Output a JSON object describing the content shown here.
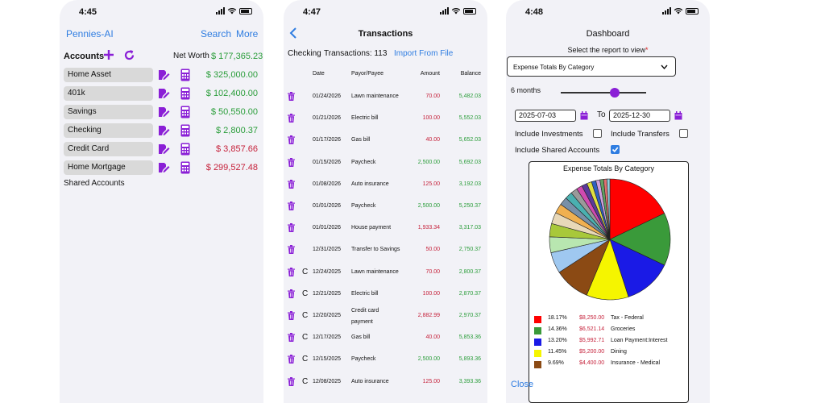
{
  "status_times": [
    "4:45",
    "4:47",
    "4:48"
  ],
  "screen1": {
    "app_title": "Pennies-AI",
    "search_label": "Search",
    "more_label": "More",
    "accounts_label": "Accounts",
    "net_worth_label": "Net Worth",
    "net_worth_value": "$ 177,365.23",
    "accounts": [
      {
        "name": "Home Asset",
        "amount": "$ 325,000.00",
        "color": "green"
      },
      {
        "name": "401k",
        "amount": "$ 102,400.00",
        "color": "green"
      },
      {
        "name": "Savings",
        "amount": "$ 50,550.00",
        "color": "green"
      },
      {
        "name": "Checking",
        "amount": "$ 2,800.37",
        "color": "green"
      },
      {
        "name": "Credit Card",
        "amount": "$ 3,857.66",
        "color": "red"
      },
      {
        "name": "Home Mortgage",
        "amount": "$ 299,527.48",
        "color": "red"
      }
    ],
    "shared_accounts_label": "Shared Accounts"
  },
  "screen2": {
    "title": "Transactions",
    "account_label": "Checking",
    "count_label": "Transactions: 113",
    "import_label": "Import From File",
    "columns": [
      "Date",
      "Payor/Payee",
      "Amount",
      "Balance"
    ],
    "rows": [
      {
        "c": "",
        "date": "01/24/2026",
        "payee": "Lawn maintenance",
        "payee2": "",
        "amount": "70.00",
        "amount_color": "red",
        "balance": "5,482.03"
      },
      {
        "c": "",
        "date": "01/21/2026",
        "payee": "Electric bill",
        "payee2": "",
        "amount": "100.00",
        "amount_color": "red",
        "balance": "5,552.03"
      },
      {
        "c": "",
        "date": "01/17/2026",
        "payee": "Gas bill",
        "payee2": "",
        "amount": "40.00",
        "amount_color": "red",
        "balance": "5,652.03"
      },
      {
        "c": "",
        "date": "01/15/2026",
        "payee": "Paycheck",
        "payee2": "",
        "amount": "2,500.00",
        "amount_color": "green",
        "balance": "5,692.03"
      },
      {
        "c": "",
        "date": "01/08/2026",
        "payee": "Auto insurance",
        "payee2": "",
        "amount": "125.00",
        "amount_color": "red",
        "balance": "3,192.03"
      },
      {
        "c": "",
        "date": "01/01/2026",
        "payee": "Paycheck",
        "payee2": "",
        "amount": "2,500.00",
        "amount_color": "green",
        "balance": "5,250.37"
      },
      {
        "c": "",
        "date": "01/01/2026",
        "payee": "House payment",
        "payee2": "",
        "amount": "1,933.34",
        "amount_color": "red",
        "balance": "3,317.03"
      },
      {
        "c": "",
        "date": "12/31/2025",
        "payee": "Transfer to Savings",
        "payee2": "",
        "amount": "50.00",
        "amount_color": "red",
        "balance": "2,750.37"
      },
      {
        "c": "C",
        "date": "12/24/2025",
        "payee": "Lawn maintenance",
        "payee2": "",
        "amount": "70.00",
        "amount_color": "red",
        "balance": "2,800.37"
      },
      {
        "c": "C",
        "date": "12/21/2025",
        "payee": "Electric bill",
        "payee2": "",
        "amount": "100.00",
        "amount_color": "red",
        "balance": "2,870.37"
      },
      {
        "c": "C",
        "date": "12/20/2025",
        "payee": "Credit card",
        "payee2": "payment",
        "amount": "2,882.99",
        "amount_color": "red",
        "balance": "2,970.37"
      },
      {
        "c": "C",
        "date": "12/17/2025",
        "payee": "Gas bill",
        "payee2": "",
        "amount": "40.00",
        "amount_color": "red",
        "balance": "5,853.36"
      },
      {
        "c": "C",
        "date": "12/15/2025",
        "payee": "Paycheck",
        "payee2": "",
        "amount": "2,500.00",
        "amount_color": "green",
        "balance": "5,893.36"
      },
      {
        "c": "C",
        "date": "12/08/2025",
        "payee": "Auto insurance",
        "payee2": "",
        "amount": "125.00",
        "amount_color": "red",
        "balance": "3,393.36"
      }
    ]
  },
  "screen3": {
    "title": "Dashboard",
    "select_label": "Select the report to view",
    "required_mark": "*",
    "report_value": "Expense Totals By Category",
    "months_label": "6 months",
    "months_fraction": 0.63,
    "start_date": "2025-07-03",
    "to_label": "To",
    "end_date": "2025-12-30",
    "include_investments_label": "Include Investments",
    "include_investments": false,
    "include_transfers_label": "Include Transfers",
    "include_transfers": false,
    "include_shared_label": "Include Shared Accounts",
    "include_shared": true,
    "close_label": "Close",
    "chart_data": {
      "type": "pie",
      "title": "Expense Totals By Category",
      "slices": [
        {
          "label": "Tax - Federal",
          "pct": "18.17%",
          "amount": "$8,250.00",
          "value": 18.17,
          "color": "#ff0000"
        },
        {
          "label": "Groceries",
          "pct": "14.36%",
          "amount": "$6,521.14",
          "value": 14.36,
          "color": "#3a9a3a"
        },
        {
          "label": "Loan Payment:Interest",
          "pct": "13.20%",
          "amount": "$5,992.71",
          "value": 13.2,
          "color": "#1a1ae6"
        },
        {
          "label": "Dining",
          "pct": "11.45%",
          "amount": "$5,200.00",
          "value": 11.45,
          "color": "#f5f500"
        },
        {
          "label": "Insurance - Medical",
          "pct": "9.69%",
          "amount": "$4,400.00",
          "value": 9.69,
          "color": "#8b4a14"
        },
        {
          "label": "",
          "pct": "",
          "amount": "",
          "value": 5.7,
          "color": "#9fc8f0"
        },
        {
          "label": "",
          "pct": "",
          "amount": "",
          "value": 4.3,
          "color": "#b8e6b0"
        },
        {
          "label": "",
          "pct": "",
          "amount": "",
          "value": 3.6,
          "color": "#a8c83a"
        },
        {
          "label": "",
          "pct": "",
          "amount": "",
          "value": 3.1,
          "color": "#e8d8b8"
        },
        {
          "label": "",
          "pct": "",
          "amount": "",
          "value": 2.6,
          "color": "#f0b050"
        },
        {
          "label": "",
          "pct": "",
          "amount": "",
          "value": 2.2,
          "color": "#7890a8"
        },
        {
          "label": "",
          "pct": "",
          "amount": "",
          "value": 2.0,
          "color": "#4ab0b0"
        },
        {
          "label": "",
          "pct": "",
          "amount": "",
          "value": 1.8,
          "color": "#9a9a9a"
        },
        {
          "label": "",
          "pct": "",
          "amount": "",
          "value": 1.6,
          "color": "#d04ab0"
        },
        {
          "label": "",
          "pct": "",
          "amount": "",
          "value": 1.5,
          "color": "#5a3a9a"
        },
        {
          "label": "",
          "pct": "",
          "amount": "",
          "value": 1.3,
          "color": "#e0e040"
        },
        {
          "label": "",
          "pct": "",
          "amount": "",
          "value": 1.2,
          "color": "#3060c0"
        },
        {
          "label": "",
          "pct": "",
          "amount": "",
          "value": 1.1,
          "color": "#d0a0e0"
        },
        {
          "label": "",
          "pct": "",
          "amount": "",
          "value": 1.0,
          "color": "#60a060"
        },
        {
          "label": "",
          "pct": "",
          "amount": "",
          "value": 0.9,
          "color": "#e07070"
        },
        {
          "label": "",
          "pct": "",
          "amount": "",
          "value": 0.8,
          "color": "#90d0e0"
        }
      ]
    }
  }
}
